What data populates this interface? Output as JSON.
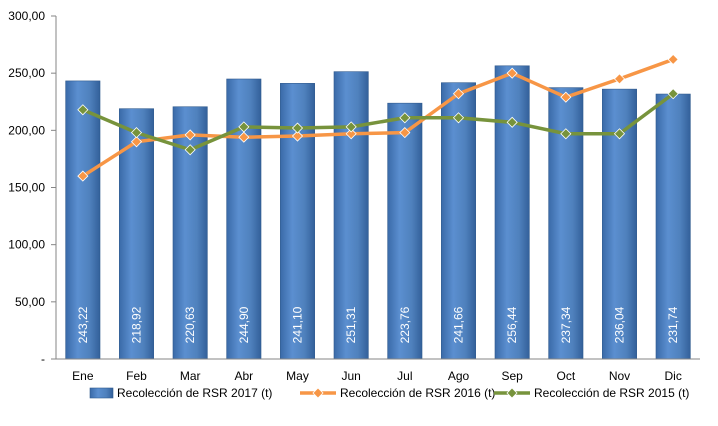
{
  "chart_data": {
    "type": "bar",
    "categories": [
      "Ene",
      "Feb",
      "Mar",
      "Abr",
      "May",
      "Jun",
      "Jul",
      "Ago",
      "Sep",
      "Oct",
      "Nov",
      "Dic"
    ],
    "ylim": [
      0,
      300
    ],
    "yticks": [
      "-",
      "50,00",
      "100,00",
      "150,00",
      "200,00",
      "250,00",
      "300,00"
    ],
    "ytick_values": [
      0,
      50,
      100,
      150,
      200,
      250,
      300
    ],
    "grid": false,
    "legend_position": "bottom",
    "series": [
      {
        "name": "Recolección de RSR 2017 (t)",
        "kind": "bar",
        "color": "#4F81BD",
        "values": [
          243.22,
          218.92,
          220.63,
          244.9,
          241.1,
          251.31,
          223.76,
          241.66,
          256.44,
          237.34,
          236.04,
          231.74
        ],
        "labels": [
          "243,22",
          "218,92",
          "220,63",
          "244,90",
          "241,10",
          "251,31",
          "223,76",
          "241,66",
          "256,44",
          "237,34",
          "236,04",
          "231,74"
        ]
      },
      {
        "name": "Recolección de RSR 2016 (t)",
        "kind": "line",
        "color": "#F79646",
        "values": [
          160,
          190,
          196,
          194,
          195,
          197,
          198,
          232,
          250,
          229,
          245,
          262
        ]
      },
      {
        "name": "Recolección de RSR 2015 (t)",
        "kind": "line",
        "color": "#77933C",
        "values": [
          218,
          198,
          183,
          203,
          202,
          203,
          211,
          211,
          207,
          197,
          197,
          232
        ]
      }
    ]
  }
}
